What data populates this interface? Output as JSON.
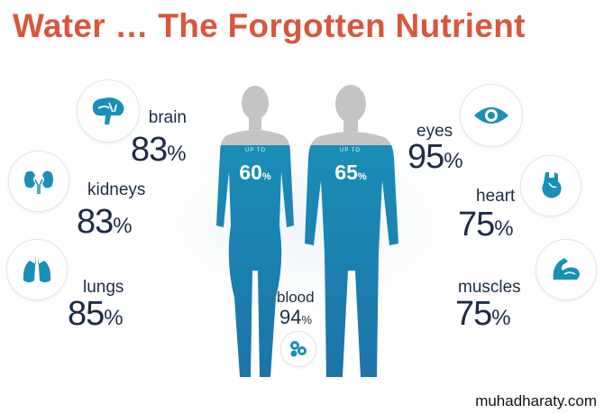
{
  "title": "Water …  The Forgotten Nutrient",
  "colors": {
    "title": "#d7573c",
    "water_blue": "#1a8fb8",
    "body_gray": "#c4c4c4",
    "text": "#1e2b45"
  },
  "figures": {
    "woman": {
      "upto": "UP TO",
      "value": "60",
      "unit": "%"
    },
    "man": {
      "upto": "UP TO",
      "value": "65",
      "unit": "%"
    }
  },
  "organs": {
    "brain": {
      "label": "brain",
      "value": "83",
      "unit": "%",
      "icon": "brain-icon"
    },
    "kidneys": {
      "label": "kidneys",
      "value": "83",
      "unit": "%",
      "icon": "kidneys-icon"
    },
    "lungs": {
      "label": "lungs",
      "value": "85",
      "unit": "%",
      "icon": "lungs-icon"
    },
    "eyes": {
      "label": "eyes",
      "value": "95",
      "unit": "%",
      "icon": "eye-icon"
    },
    "heart": {
      "label": "heart",
      "value": "75",
      "unit": "%",
      "icon": "heart-icon"
    },
    "muscles": {
      "label": "muscles",
      "value": "75",
      "unit": "%",
      "icon": "muscle-icon"
    },
    "blood": {
      "label": "blood",
      "value": "94",
      "unit": "%",
      "icon": "blood-cells-icon"
    }
  },
  "watermark": "muhadharaty.com"
}
